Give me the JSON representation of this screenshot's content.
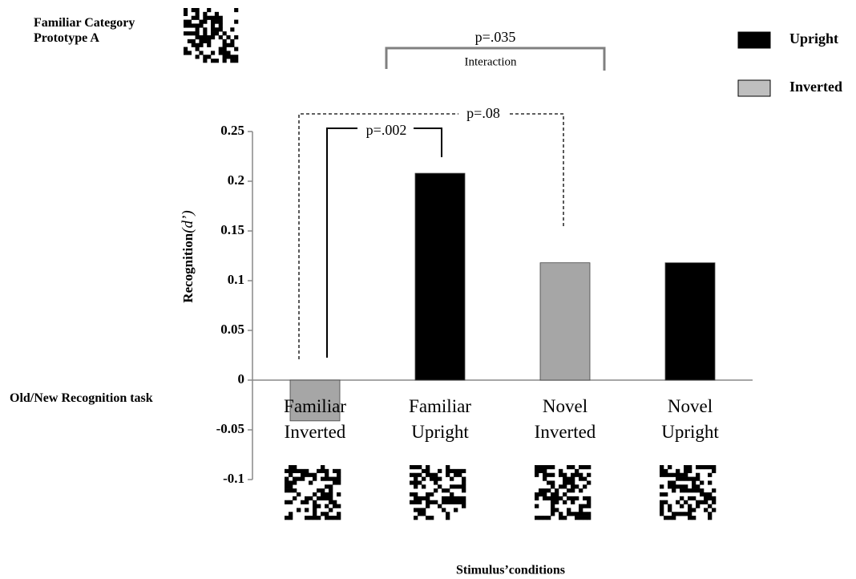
{
  "chart_data": {
    "type": "bar",
    "categories": [
      "Familiar Inverted",
      "Familiar Upright",
      "Novel Inverted",
      "Novel Upright"
    ],
    "values": [
      -0.041,
      0.208,
      0.118,
      0.118
    ],
    "colors": [
      "#a6a6a6",
      "#000000",
      "#a6a6a6",
      "#000000"
    ],
    "legend": [
      {
        "name": "Upright",
        "color": "#000000"
      },
      {
        "name": "Inverted",
        "color": "#bfbfbf"
      }
    ],
    "ylim": [
      -0.1,
      0.25
    ],
    "yticks": [
      -0.1,
      -0.05,
      0,
      0.05,
      0.1,
      0.15,
      0.2,
      0.25
    ],
    "y_label": "Recognition",
    "y_label_symbol": "(d’)",
    "x_label": "Stimulus’conditions",
    "annotations": [
      "Familiar Category Prototype A",
      "Old/New Recognition task",
      "p=.035",
      "Interaction",
      "p=.08",
      "p=.002"
    ]
  }
}
